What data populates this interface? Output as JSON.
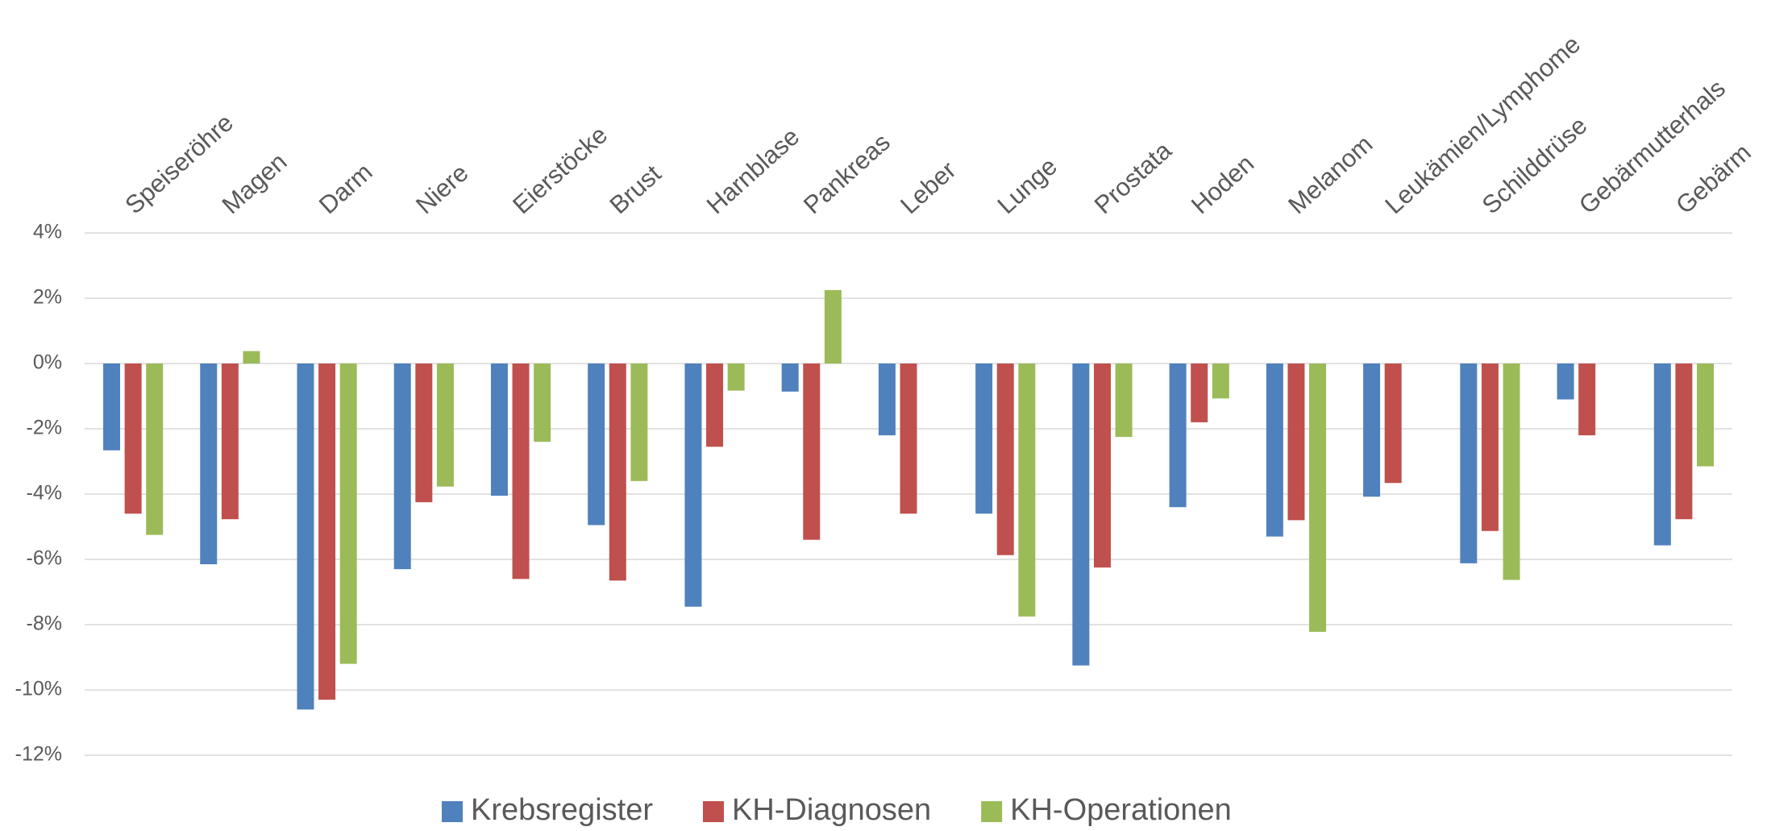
{
  "chart_data": {
    "type": "bar",
    "categories": [
      "Speiseröhre",
      "Magen",
      "Darm",
      "Niere",
      "Eierstöcke",
      "Brust",
      "Harnblase",
      "Pankreas",
      "Leber",
      "Lunge",
      "Prostata",
      "Hoden",
      "Melanom",
      "Leukämien/Lymphome",
      "Schilddrüse",
      "Gebärmutterhals",
      "Gebärm"
    ],
    "series": [
      {
        "name": "Krebsregister",
        "color": "#4f81bd",
        "values": [
          -2.66,
          -6.15,
          -10.6,
          -6.3,
          -4.05,
          -4.95,
          -7.45,
          -0.86,
          -2.2,
          -4.6,
          -9.25,
          -4.4,
          -5.3,
          -4.08,
          -6.12,
          -1.1,
          -5.57
        ]
      },
      {
        "name": "KH-Diagnosen",
        "color": "#c0504d",
        "values": [
          -4.6,
          -4.77,
          -10.3,
          -4.25,
          -6.6,
          -6.65,
          -2.55,
          -5.4,
          -4.6,
          -5.87,
          -6.25,
          -1.8,
          -4.8,
          -3.66,
          -5.13,
          -2.2,
          -4.77
        ]
      },
      {
        "name": "KH-Operationen",
        "color": "#9bbb59",
        "values": [
          -5.25,
          0.38,
          -9.2,
          -3.77,
          -2.4,
          -3.6,
          -0.83,
          2.25,
          null,
          -7.75,
          -2.25,
          -1.07,
          -8.22,
          null,
          -6.63,
          null,
          -3.15
        ]
      }
    ],
    "ylim": [
      -12,
      4
    ],
    "yticks": [
      {
        "value": 4,
        "label": "4%"
      },
      {
        "value": 2,
        "label": "2%"
      },
      {
        "value": 0,
        "label": "0%"
      },
      {
        "value": -2,
        "label": "-2%"
      },
      {
        "value": -4,
        "label": "-4%"
      },
      {
        "value": -6,
        "label": "-6%"
      },
      {
        "value": -8,
        "label": "-8%"
      },
      {
        "value": -10,
        "label": "-10%"
      },
      {
        "value": -12,
        "label": "-12%"
      }
    ],
    "grid": true,
    "legend": "bottom"
  }
}
